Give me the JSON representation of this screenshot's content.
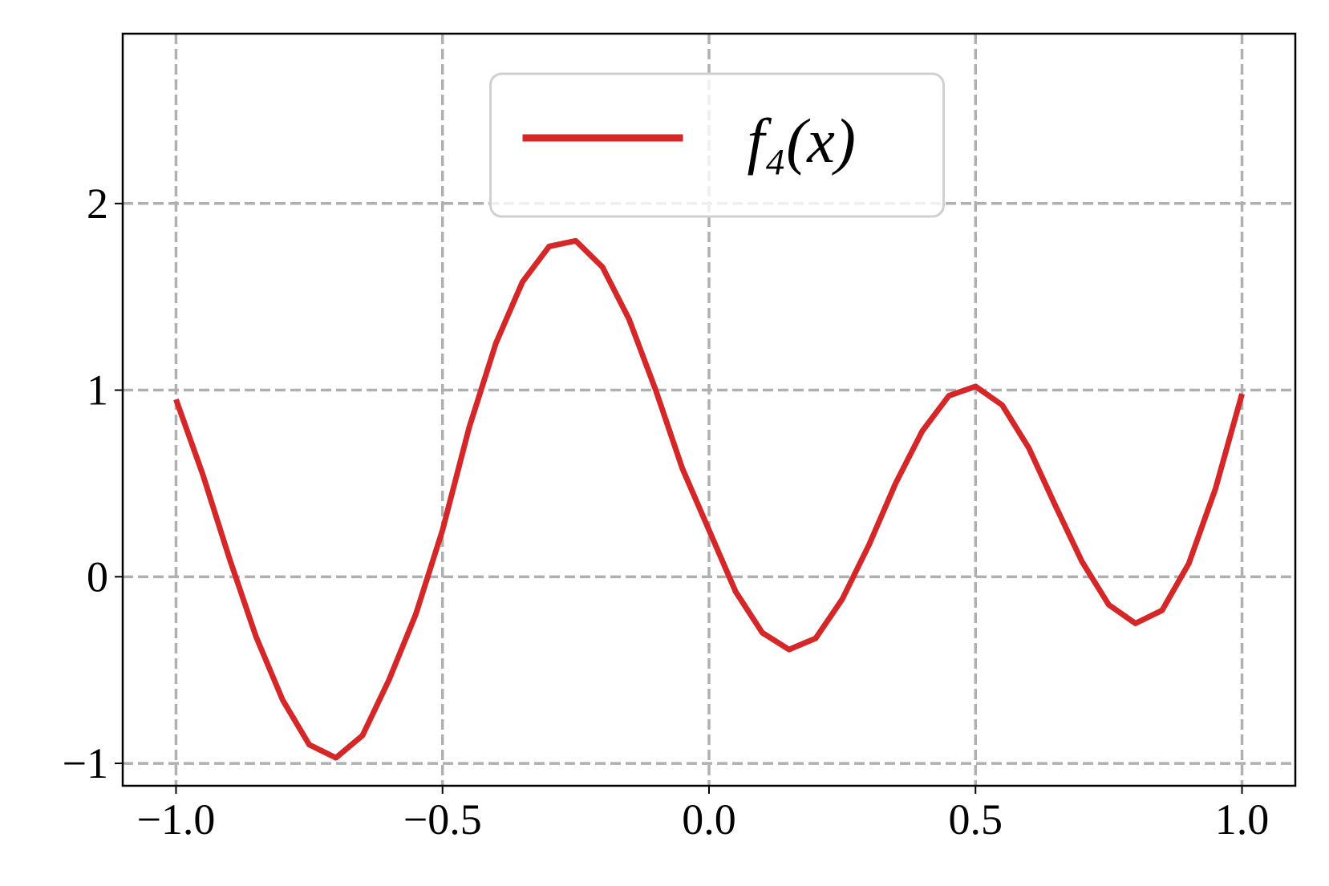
{
  "chart_data": {
    "type": "line",
    "x": [
      -1.0,
      -0.95,
      -0.9,
      -0.85,
      -0.8,
      -0.75,
      -0.7,
      -0.65,
      -0.6,
      -0.55,
      -0.5,
      -0.45,
      -0.4,
      -0.35,
      -0.3,
      -0.25,
      -0.2,
      -0.15,
      -0.1,
      -0.05,
      0.0,
      0.05,
      0.1,
      0.15,
      0.2,
      0.25,
      0.3,
      0.35,
      0.4,
      0.45,
      0.5,
      0.55,
      0.6,
      0.65,
      0.7,
      0.75,
      0.8,
      0.85,
      0.9,
      0.95,
      1.0
    ],
    "series": [
      {
        "name": "f₄(x)",
        "color": "#d62728",
        "values": [
          0.95,
          0.55,
          0.1,
          -0.32,
          -0.66,
          -0.9,
          -0.97,
          -0.85,
          -0.55,
          -0.2,
          0.25,
          0.8,
          1.25,
          1.58,
          1.77,
          1.8,
          1.66,
          1.38,
          1.0,
          0.58,
          0.25,
          -0.08,
          -0.3,
          -0.39,
          -0.33,
          -0.12,
          0.17,
          0.5,
          0.78,
          0.97,
          1.02,
          0.92,
          0.69,
          0.38,
          0.08,
          -0.15,
          -0.25,
          -0.18,
          0.07,
          0.47,
          0.98
        ]
      }
    ],
    "xlim": [
      -1.1,
      1.1
    ],
    "ylim": [
      -1.12,
      2.91
    ],
    "xticks": [
      {
        "value": -1.0,
        "label": "−1.0"
      },
      {
        "value": -0.5,
        "label": "−0.5"
      },
      {
        "value": 0.0,
        "label": "0.0"
      },
      0.5,
      {
        "value": 1.0,
        "label": "1.0"
      }
    ],
    "yticks": [
      {
        "value": -1,
        "label": "−1"
      },
      0,
      1,
      2
    ],
    "grid": true,
    "legend": "upper center"
  }
}
